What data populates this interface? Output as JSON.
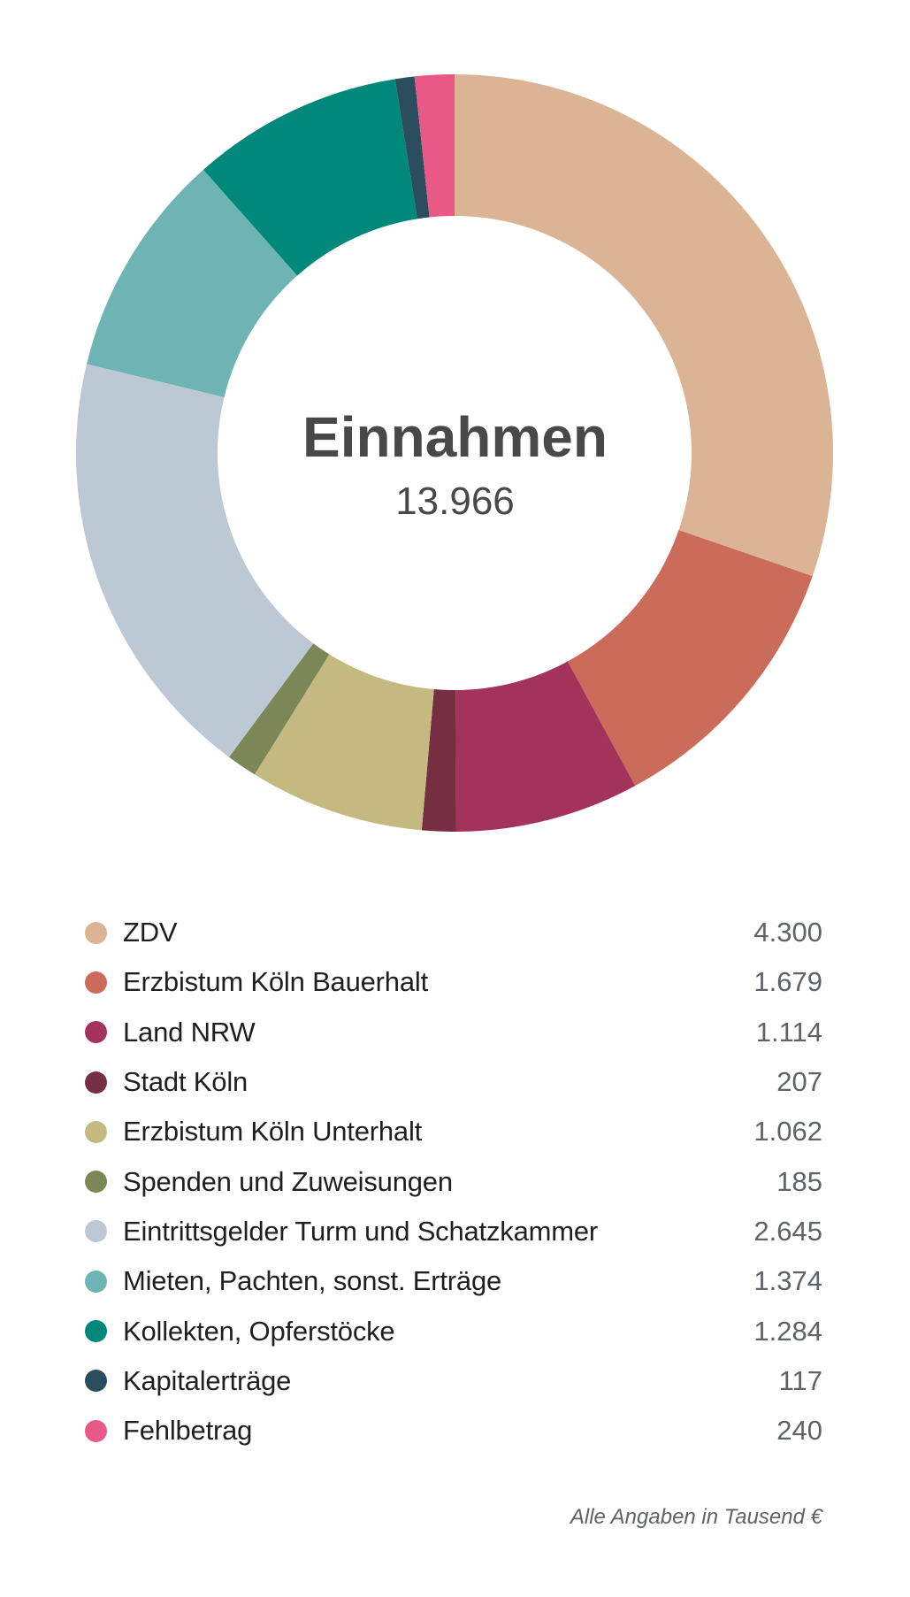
{
  "chart_data": {
    "type": "pie",
    "variant": "donut",
    "title": "Einnahmen",
    "center_value": "13.966",
    "start": "top",
    "direction": "clockwise",
    "legend_position": "bottom",
    "categories": [
      "ZDV",
      "Erzbistum Köln Bauerhalt",
      "Land NRW",
      "Stadt Köln",
      "Erzbistum Köln Unterhalt",
      "Spenden und Zuweisungen",
      "Eintrittsgelder Turm und Schatzkammer",
      "Mieten, Pachten, sonst. Erträge",
      "Kollekten, Opferstöcke",
      "Kapitalerträge",
      "Fehlbetrag"
    ],
    "values": [
      4300,
      1679,
      1114,
      207,
      1062,
      185,
      2645,
      1374,
      1284,
      117,
      240
    ],
    "value_labels": [
      "4.300",
      "1.679",
      "1.114",
      "207",
      "1.062",
      "185",
      "2.645",
      "1.374",
      "1.284",
      "117",
      "240"
    ],
    "colors": [
      "#dbb395",
      "#cb6b59",
      "#a3335b",
      "#762f42",
      "#c4ba81",
      "#7c8757",
      "#bcc8d3",
      "#6fb4b5",
      "#00887b",
      "#2b4d5e",
      "#e85986"
    ],
    "unit_note": "Alle Angaben in Tausend €"
  }
}
